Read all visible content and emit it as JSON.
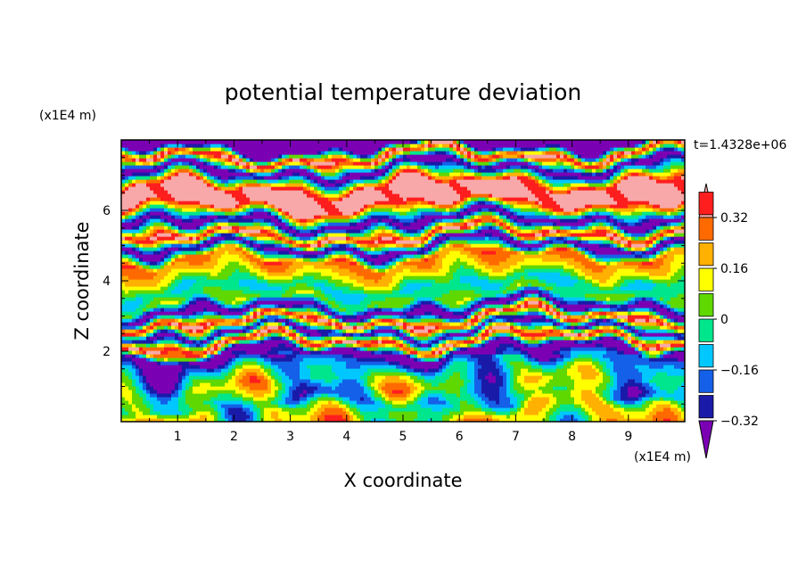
{
  "chart_data": {
    "type": "heatmap",
    "title": "potential temperature deviation",
    "xlabel": "X coordinate",
    "ylabel": "Z coordinate",
    "x_unit_label": "(x1E4 m)",
    "y_unit_label": "(x1E4 m)",
    "time_label": "t=1.4328e+06",
    "xlim": [
      0,
      10
    ],
    "ylim": [
      0,
      8
    ],
    "x_ticks": [
      "1",
      "2",
      "3",
      "4",
      "5",
      "6",
      "7",
      "8",
      "9"
    ],
    "y_ticks": [
      "2",
      "4",
      "6"
    ],
    "colorbar": {
      "labels": [
        "0.32",
        "0.16",
        "0",
        "-0.16",
        "-0.32"
      ],
      "levels": [
        -0.4,
        -0.32,
        -0.24,
        -0.16,
        -0.08,
        0,
        0.08,
        0.16,
        0.24,
        0.32,
        0.4
      ],
      "colors": [
        "#7b00b4",
        "#1a1aa8",
        "#1560e8",
        "#00c8ff",
        "#00e68c",
        "#5fd800",
        "#ffff00",
        "#ffb000",
        "#ff6a00",
        "#ff1e1e",
        "#f8a8a8"
      ]
    },
    "bands": [
      {
        "z": 7.7,
        "value": -0.45
      },
      {
        "z": 7.4,
        "value": 0.45
      },
      {
        "z": 7.05,
        "value": -0.45
      },
      {
        "z": 6.55,
        "value": 0.45
      },
      {
        "z": 6.05,
        "value": 0.45
      },
      {
        "z": 5.55,
        "value": -0.45
      },
      {
        "z": 5.15,
        "value": 0.45
      },
      {
        "z": 4.85,
        "value": -0.45
      },
      {
        "z": 4.5,
        "value": 0.28
      },
      {
        "z": 4.05,
        "value": 0.12
      },
      {
        "z": 3.7,
        "value": -0.1
      },
      {
        "z": 3.35,
        "value": 0.05
      },
      {
        "z": 3.05,
        "value": -0.45
      },
      {
        "z": 2.75,
        "value": 0.45
      },
      {
        "z": 2.45,
        "value": -0.4
      },
      {
        "z": 2.15,
        "value": 0.45
      },
      {
        "z": 1.85,
        "value": -0.45
      },
      {
        "z": 1.4,
        "value": -0.1
      },
      {
        "z": 0.95,
        "value": 0.05
      },
      {
        "z": 0.45,
        "value": -0.12
      },
      {
        "z": 0.1,
        "value": 0.1
      }
    ]
  }
}
